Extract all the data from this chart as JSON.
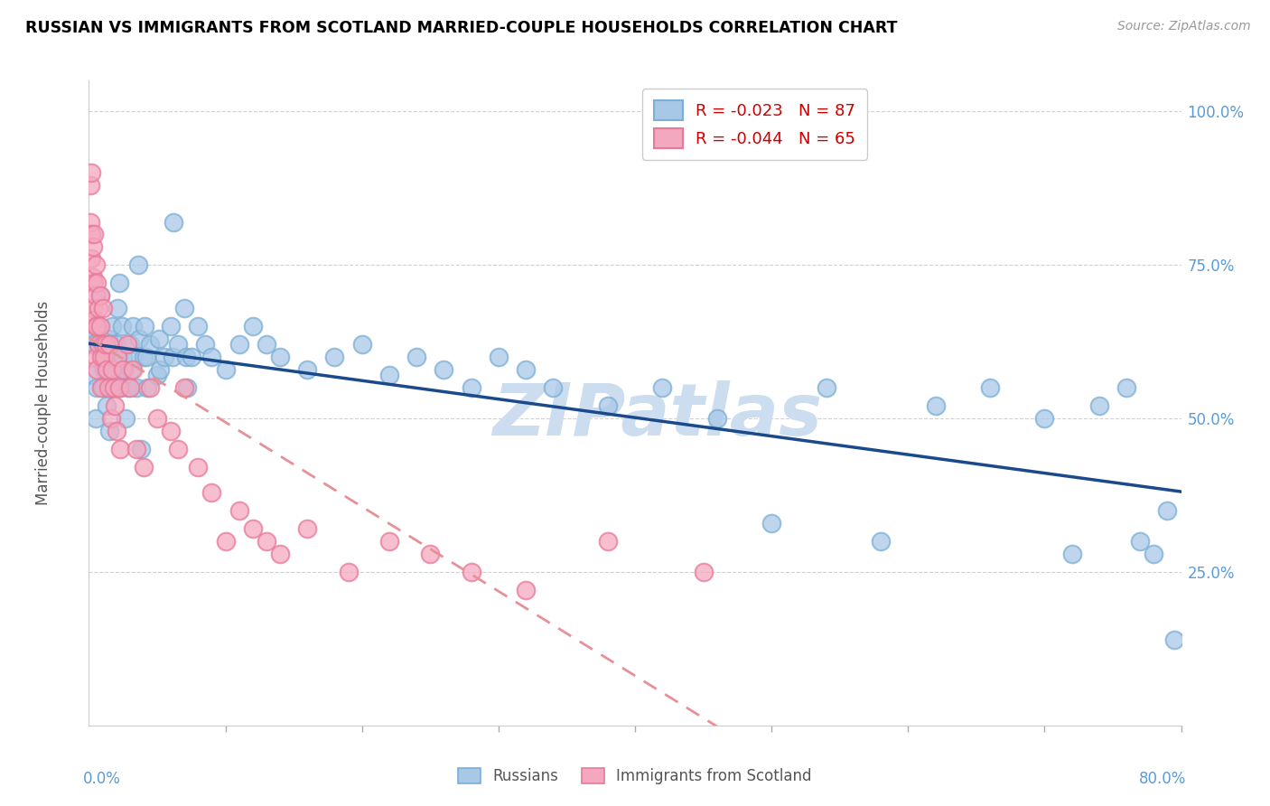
{
  "title": "RUSSIAN VS IMMIGRANTS FROM SCOTLAND MARRIED-COUPLE HOUSEHOLDS CORRELATION CHART",
  "source": "Source: ZipAtlas.com",
  "ylabel": "Married-couple Households",
  "russian_color": "#a8c8e8",
  "scotland_color": "#f4a8c0",
  "russian_edge_color": "#7bafd4",
  "scotland_edge_color": "#e87898",
  "trendline_russian_color": "#1a4a8c",
  "trendline_scotland_color": "#e89098",
  "background_color": "#ffffff",
  "grid_color": "#cccccc",
  "axis_color": "#5b9bd5",
  "title_color": "#000000",
  "xmin": 0.0,
  "xmax": 0.8,
  "ymin": 0.0,
  "ymax": 1.05,
  "watermark": "ZIPatlas",
  "watermark_color": "#ccddf0",
  "r_russian": -0.023,
  "n_russian": 87,
  "r_scotland": -0.044,
  "n_scotland": 65,
  "russians_x": [
    0.001,
    0.002,
    0.003,
    0.004,
    0.005,
    0.006,
    0.007,
    0.008,
    0.009,
    0.01,
    0.011,
    0.012,
    0.013,
    0.014,
    0.015,
    0.016,
    0.017,
    0.018,
    0.019,
    0.02,
    0.021,
    0.022,
    0.023,
    0.024,
    0.025,
    0.026,
    0.027,
    0.028,
    0.03,
    0.031,
    0.032,
    0.033,
    0.035,
    0.036,
    0.037,
    0.038,
    0.04,
    0.041,
    0.042,
    0.043,
    0.045,
    0.05,
    0.051,
    0.052,
    0.055,
    0.06,
    0.061,
    0.062,
    0.065,
    0.07,
    0.071,
    0.072,
    0.075,
    0.08,
    0.085,
    0.09,
    0.1,
    0.11,
    0.12,
    0.13,
    0.14,
    0.16,
    0.18,
    0.2,
    0.22,
    0.24,
    0.26,
    0.28,
    0.3,
    0.32,
    0.34,
    0.38,
    0.42,
    0.46,
    0.5,
    0.54,
    0.58,
    0.62,
    0.66,
    0.7,
    0.72,
    0.74,
    0.76,
    0.77,
    0.78,
    0.79,
    0.795
  ],
  "russians_y": [
    0.62,
    0.64,
    0.57,
    0.62,
    0.5,
    0.55,
    0.65,
    0.7,
    0.62,
    0.55,
    0.58,
    0.6,
    0.52,
    0.63,
    0.48,
    0.55,
    0.65,
    0.6,
    0.57,
    0.62,
    0.68,
    0.72,
    0.55,
    0.65,
    0.6,
    0.58,
    0.5,
    0.55,
    0.62,
    0.58,
    0.65,
    0.6,
    0.55,
    0.75,
    0.63,
    0.45,
    0.6,
    0.65,
    0.6,
    0.55,
    0.62,
    0.57,
    0.63,
    0.58,
    0.6,
    0.65,
    0.6,
    0.82,
    0.62,
    0.68,
    0.6,
    0.55,
    0.6,
    0.65,
    0.62,
    0.6,
    0.58,
    0.62,
    0.65,
    0.62,
    0.6,
    0.58,
    0.6,
    0.62,
    0.57,
    0.6,
    0.58,
    0.55,
    0.6,
    0.58,
    0.55,
    0.52,
    0.55,
    0.5,
    0.33,
    0.55,
    0.3,
    0.52,
    0.55,
    0.5,
    0.28,
    0.52,
    0.55,
    0.3,
    0.28,
    0.35,
    0.14
  ],
  "scotland_x": [
    0.001,
    0.001,
    0.002,
    0.002,
    0.002,
    0.003,
    0.003,
    0.003,
    0.004,
    0.004,
    0.004,
    0.005,
    0.005,
    0.005,
    0.005,
    0.006,
    0.006,
    0.006,
    0.007,
    0.007,
    0.008,
    0.008,
    0.009,
    0.009,
    0.01,
    0.01,
    0.011,
    0.012,
    0.013,
    0.014,
    0.015,
    0.016,
    0.017,
    0.018,
    0.019,
    0.02,
    0.021,
    0.022,
    0.023,
    0.025,
    0.028,
    0.03,
    0.032,
    0.035,
    0.04,
    0.045,
    0.05,
    0.06,
    0.065,
    0.07,
    0.08,
    0.09,
    0.1,
    0.11,
    0.12,
    0.13,
    0.14,
    0.16,
    0.19,
    0.22,
    0.25,
    0.28,
    0.32,
    0.38,
    0.45
  ],
  "scotland_y": [
    0.88,
    0.82,
    0.8,
    0.76,
    0.9,
    0.78,
    0.73,
    0.68,
    0.72,
    0.66,
    0.8,
    0.65,
    0.7,
    0.6,
    0.75,
    0.65,
    0.72,
    0.58,
    0.62,
    0.68,
    0.65,
    0.7,
    0.6,
    0.55,
    0.62,
    0.68,
    0.6,
    0.62,
    0.58,
    0.55,
    0.62,
    0.5,
    0.58,
    0.55,
    0.52,
    0.48,
    0.6,
    0.55,
    0.45,
    0.58,
    0.62,
    0.55,
    0.58,
    0.45,
    0.42,
    0.55,
    0.5,
    0.48,
    0.45,
    0.55,
    0.42,
    0.38,
    0.3,
    0.35,
    0.32,
    0.3,
    0.28,
    0.32,
    0.25,
    0.3,
    0.28,
    0.25,
    0.22,
    0.3,
    0.25
  ]
}
